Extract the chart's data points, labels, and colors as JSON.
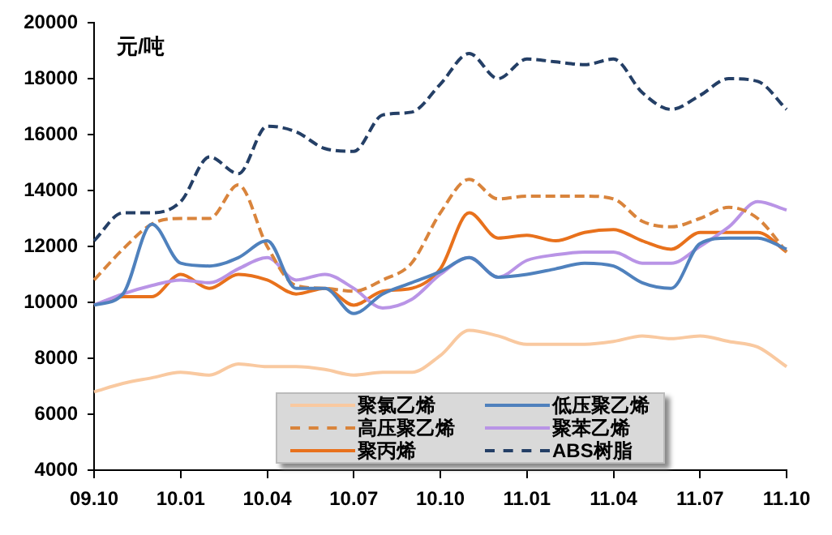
{
  "chart_data": {
    "type": "line",
    "ylabel": "元/吨",
    "categories": [
      "09.10",
      null,
      null,
      "10.01",
      null,
      null,
      "10.04",
      null,
      null,
      "10.07",
      null,
      null,
      "10.10",
      null,
      null,
      "11.01",
      null,
      null,
      "11.04",
      null,
      null,
      "11.07",
      null,
      null,
      "11.10"
    ],
    "ylim": [
      4000,
      20000
    ],
    "yticks": [
      4000,
      6000,
      8000,
      10000,
      12000,
      14000,
      16000,
      18000,
      20000
    ],
    "grid": false,
    "legend": "bottom",
    "marker": "none",
    "series": [
      {
        "name": "聚氯乙烯",
        "color": "#f9c9a0",
        "line_style": "solid",
        "values": [
          6800,
          7100,
          7300,
          7500,
          7400,
          7800,
          7700,
          7700,
          7600,
          7400,
          7500,
          7500,
          8100,
          9000,
          8800,
          8500,
          8500,
          8500,
          8600,
          8800,
          8700,
          8800,
          8600,
          8400,
          7700
        ]
      },
      {
        "name": "低压聚乙烯",
        "color": "#4f81bd",
        "line_style": "solid",
        "values": [
          9900,
          10300,
          12800,
          11400,
          11300,
          11600,
          12200,
          10500,
          10500,
          9600,
          10300,
          10700,
          11100,
          11600,
          10900,
          11000,
          11200,
          11400,
          11300,
          10700,
          10500,
          12100,
          12300,
          12300,
          11900
        ]
      },
      {
        "name": "高压聚乙烯",
        "color": "#d9843c",
        "line_style": "dashed",
        "values": [
          10800,
          11900,
          12800,
          13000,
          13000,
          14200,
          12000,
          10600,
          10500,
          10400,
          10800,
          11400,
          13200,
          14400,
          13700,
          13800,
          13800,
          13800,
          13700,
          12900,
          12700,
          13000,
          13400,
          13000,
          11800
        ]
      },
      {
        "name": "聚苯乙烯",
        "color": "#b994e6",
        "line_style": "solid",
        "values": [
          9900,
          10300,
          10600,
          10800,
          10700,
          11200,
          11600,
          10800,
          11000,
          10500,
          9800,
          10100,
          11000,
          11600,
          10900,
          11500,
          11700,
          11800,
          11800,
          11400,
          11400,
          12000,
          12700,
          13600,
          13300
        ]
      },
      {
        "name": "聚丙烯",
        "color": "#e8711c",
        "line_style": "solid",
        "values": [
          9900,
          10200,
          10200,
          11000,
          10500,
          11000,
          10800,
          10300,
          10500,
          9900,
          10400,
          10500,
          11200,
          13200,
          12300,
          12400,
          12200,
          12500,
          12600,
          12200,
          11900,
          12500,
          12500,
          12500,
          11800
        ]
      },
      {
        "name": "ABS树脂",
        "color": "#243f66",
        "line_style": "dashed",
        "values": [
          12200,
          13200,
          13200,
          13600,
          15200,
          14600,
          16300,
          16100,
          15500,
          15400,
          16700,
          16800,
          17800,
          18900,
          18000,
          18700,
          18600,
          18500,
          18700,
          17500,
          16900,
          17400,
          18000,
          17900,
          16900
        ]
      }
    ]
  }
}
